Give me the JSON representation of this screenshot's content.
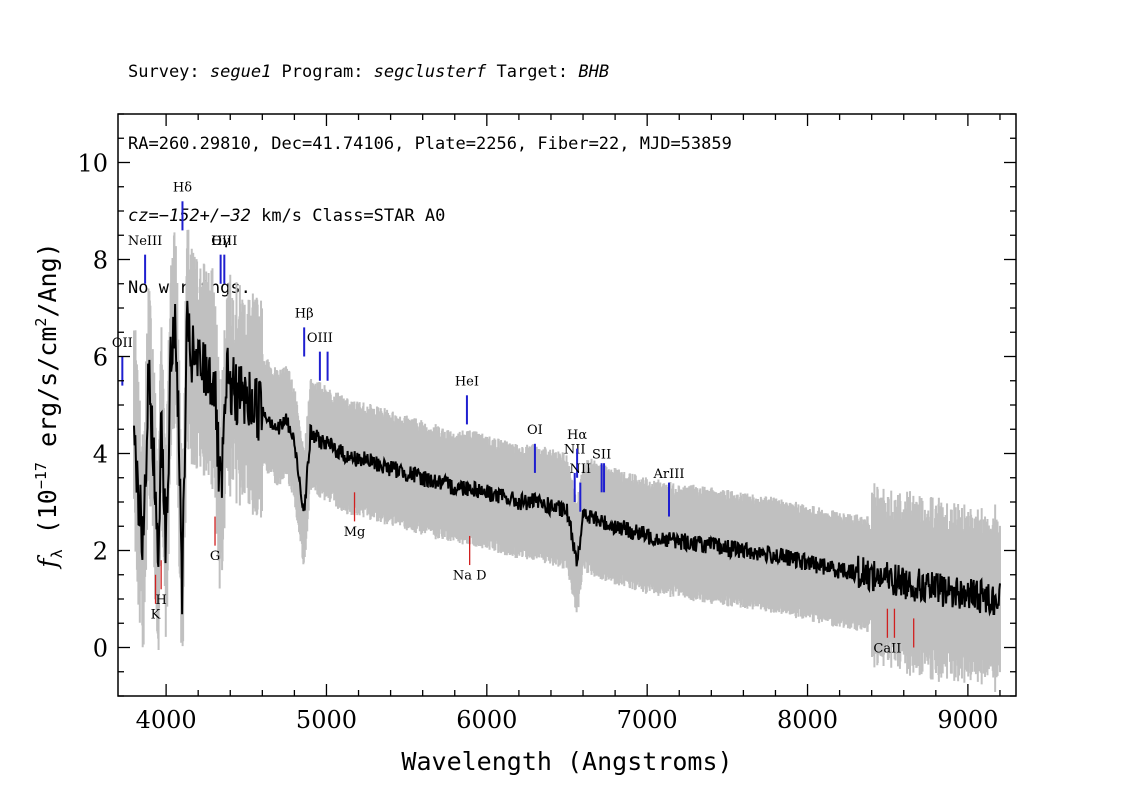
{
  "header": {
    "line1": {
      "survey_label": "Survey: ",
      "survey": "segue1",
      "program_label": " Program: ",
      "program": "segclusterf",
      "target_label": " Target: ",
      "target": "BHB"
    },
    "line2": "RA=260.29810, Dec=41.74106, Plate=2256, Fiber=22, MJD=53859",
    "line3": {
      "cz_label": "cz=",
      "cz_value": "−152+/−32",
      "cz_rest": " km/s Class=STAR A0"
    },
    "line4": "No warnings."
  },
  "colors": {
    "flux": "#000000",
    "error_band": "#c0c0c0",
    "emission_line": "#1f1fd0",
    "absorption_line": "#d02020"
  },
  "chart_data": {
    "type": "line",
    "xlabel": "Wavelength (Angstroms)",
    "ylabel_main": "f",
    "ylabel_sub": "λ",
    "ylabel_rest": " (10",
    "ylabel_exp": "−17",
    "ylabel_units": " erg/s/cm",
    "ylabel_sq": "2",
    "ylabel_end": "/Ang)",
    "xlim": [
      3700,
      9300
    ],
    "ylim": [
      -1,
      11
    ],
    "xticks": [
      "4000",
      "5000",
      "6000",
      "7000",
      "8000",
      "9000"
    ],
    "yticks": [
      "0",
      "2",
      "4",
      "6",
      "8",
      "10"
    ],
    "grid": false,
    "series": [
      {
        "role": "flux",
        "x": [
          3800,
          3830,
          3860,
          3890,
          3920,
          3950,
          3970,
          4000,
          4030,
          4060,
          4101,
          4130,
          4160,
          4200,
          4250,
          4300,
          4340,
          4380,
          4420,
          4460,
          4500,
          4550,
          4600,
          4650,
          4700,
          4750,
          4800,
          4861,
          4900,
          4950,
          5000,
          5050,
          5100,
          5150,
          5200,
          5300,
          5400,
          5500,
          5600,
          5700,
          5800,
          5900,
          6000,
          6100,
          6200,
          6300,
          6400,
          6500,
          6563,
          6600,
          6650,
          6700,
          6800,
          6900,
          7000,
          7200,
          7400,
          7600,
          7800,
          8000,
          8200,
          8400,
          8600,
          8800,
          9000,
          9200
        ],
        "y": [
          4.8,
          3.0,
          2.0,
          5.5,
          4.2,
          1.5,
          5.0,
          2.0,
          6.0,
          6.8,
          1.2,
          6.5,
          6.0,
          5.8,
          5.7,
          5.5,
          3.0,
          5.5,
          5.3,
          5.2,
          5.1,
          5.0,
          4.9,
          4.7,
          4.5,
          4.7,
          4.2,
          2.8,
          4.4,
          4.3,
          4.2,
          4.1,
          4.0,
          3.9,
          3.9,
          3.8,
          3.7,
          3.6,
          3.5,
          3.4,
          3.3,
          3.3,
          3.2,
          3.1,
          3.0,
          3.0,
          2.9,
          2.8,
          1.8,
          2.7,
          2.7,
          2.6,
          2.5,
          2.4,
          2.3,
          2.2,
          2.1,
          2.0,
          1.9,
          1.75,
          1.6,
          1.5,
          1.35,
          1.2,
          1.1,
          1.0
        ]
      }
    ],
    "lines": [
      {
        "label": "OII",
        "wave": 3727,
        "kind": "emission",
        "y_top": 6.0,
        "y_bottom": 5.4,
        "label_y": 6.2
      },
      {
        "label": "NeIII",
        "wave": 3869,
        "kind": "emission",
        "y_top": 8.1,
        "y_bottom": 7.5,
        "label_y": 8.3
      },
      {
        "label": "K",
        "wave": 3934,
        "kind": "absorption",
        "y_top": 1.5,
        "y_bottom": 0.9,
        "label_y": 0.6
      },
      {
        "label": "H",
        "wave": 3969,
        "kind": "absorption",
        "y_top": 1.8,
        "y_bottom": 1.2,
        "label_y": 0.9
      },
      {
        "label": "Hδ",
        "wave": 4102,
        "kind": "emission",
        "y_top": 9.2,
        "y_bottom": 8.6,
        "label_y": 9.4
      },
      {
        "label": "G",
        "wave": 4305,
        "kind": "absorption",
        "y_top": 2.7,
        "y_bottom": 2.1,
        "label_y": 1.8
      },
      {
        "label": "Hγ",
        "wave": 4340,
        "kind": "emission",
        "y_top": 8.1,
        "y_bottom": 7.5,
        "label_y": 8.3
      },
      {
        "label": "OIII",
        "wave": 4363,
        "kind": "emission",
        "y_top": 8.1,
        "y_bottom": 7.5,
        "label_y": 8.3
      },
      {
        "label": "Hβ",
        "wave": 4861,
        "kind": "emission",
        "y_top": 6.6,
        "y_bottom": 6.0,
        "label_y": 6.8
      },
      {
        "label": "OIII",
        "wave": 4959,
        "kind": "emission",
        "y_top": 6.1,
        "y_bottom": 5.5,
        "label_y": 6.3
      },
      {
        "label": "",
        "wave": 5007,
        "kind": "emission",
        "y_top": 6.1,
        "y_bottom": 5.5,
        "label_y": 6.3
      },
      {
        "label": "Mg",
        "wave": 5175,
        "kind": "absorption",
        "y_top": 3.2,
        "y_bottom": 2.6,
        "label_y": 2.3
      },
      {
        "label": "HeI",
        "wave": 5876,
        "kind": "emission",
        "y_top": 5.2,
        "y_bottom": 4.6,
        "label_y": 5.4
      },
      {
        "label": "Na D",
        "wave": 5893,
        "kind": "absorption",
        "y_top": 2.3,
        "y_bottom": 1.7,
        "label_y": 1.4
      },
      {
        "label": "OI",
        "wave": 6300,
        "kind": "emission",
        "y_top": 4.2,
        "y_bottom": 3.6,
        "label_y": 4.4
      },
      {
        "label": "NII",
        "wave": 6548,
        "kind": "emission",
        "y_top": 3.6,
        "y_bottom": 3.0,
        "label_y": 4.0
      },
      {
        "label": "Hα",
        "wave": 6563,
        "kind": "emission",
        "y_top": 4.1,
        "y_bottom": 3.5,
        "label_y": 4.3
      },
      {
        "label": "NII",
        "wave": 6583,
        "kind": "emission",
        "y_top": 3.4,
        "y_bottom": 2.8,
        "label_y": 3.6
      },
      {
        "label": "SII",
        "wave": 6716,
        "kind": "emission",
        "y_top": 3.8,
        "y_bottom": 3.2,
        "label_y": 3.9
      },
      {
        "label": "",
        "wave": 6731,
        "kind": "emission",
        "y_top": 3.8,
        "y_bottom": 3.2,
        "label_y": 3.9
      },
      {
        "label": "ArIII",
        "wave": 7136,
        "kind": "emission",
        "y_top": 3.4,
        "y_bottom": 2.7,
        "label_y": 3.5
      },
      {
        "label": "CaII",
        "wave": 8498,
        "kind": "absorption",
        "y_top": 0.8,
        "y_bottom": 0.2,
        "label_y": -0.1
      },
      {
        "label": "",
        "wave": 8542,
        "kind": "absorption",
        "y_top": 0.8,
        "y_bottom": 0.2,
        "label_y": -0.1
      },
      {
        "label": "",
        "wave": 8662,
        "kind": "absorption",
        "y_top": 0.6,
        "y_bottom": 0.0,
        "label_y": -0.1
      }
    ]
  }
}
